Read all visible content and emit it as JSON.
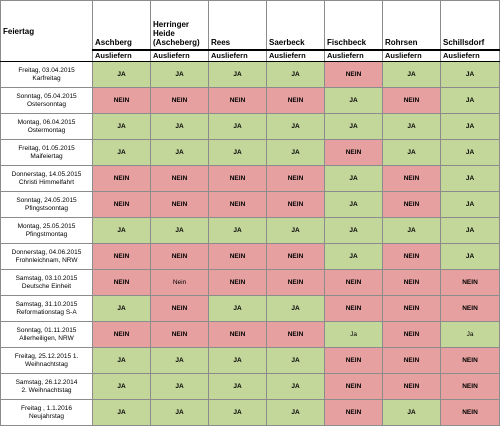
{
  "table": {
    "feiertag_header": "Feiertag",
    "sub_header": "Ausliefern",
    "locations": [
      "Aschberg",
      "Herringer Heide (Ascheberg)",
      "Rees",
      "Saerbeck",
      "Fischbeck",
      "Rohrsen",
      "Schillsdorf"
    ],
    "rows": [
      {
        "date": "Freitag, 03.04.2015",
        "name": "Karfreitag",
        "values": [
          "JA",
          "JA",
          "JA",
          "JA",
          "NEIN",
          "JA",
          "JA"
        ]
      },
      {
        "date": "Sonntag, 05.04.2015",
        "name": "Ostersonntag",
        "values": [
          "NEIN",
          "NEIN",
          "NEIN",
          "NEIN",
          "JA",
          "NEIN",
          "JA"
        ]
      },
      {
        "date": "Montag, 06.04.2015",
        "name": "Ostermontag",
        "values": [
          "JA",
          "JA",
          "JA",
          "JA",
          "JA",
          "JA",
          "JA"
        ]
      },
      {
        "date": "Freitag, 01.05.2015",
        "name": "Maifeiertag",
        "values": [
          "JA",
          "JA",
          "JA",
          "JA",
          "NEIN",
          "JA",
          "JA"
        ]
      },
      {
        "date": "Donnerstag, 14.05.2015",
        "name": "Christi Himmelfahrt",
        "values": [
          "NEIN",
          "NEIN",
          "NEIN",
          "NEIN",
          "JA",
          "NEIN",
          "JA"
        ]
      },
      {
        "date": "Sonntag, 24.05.2015",
        "name": "Pfingstsonntag",
        "values": [
          "NEIN",
          "NEIN",
          "NEIN",
          "NEIN",
          "JA",
          "NEIN",
          "JA"
        ]
      },
      {
        "date": "Montag, 25.05.2015",
        "name": "Pfingstmontag",
        "values": [
          "JA",
          "JA",
          "JA",
          "JA",
          "JA",
          "JA",
          "JA"
        ]
      },
      {
        "date": "Donnerstag, 04.06.2015",
        "name": "Frohnleichnam, NRW",
        "values": [
          "NEIN",
          "NEIN",
          "NEIN",
          "NEIN",
          "JA",
          "NEIN",
          "JA"
        ]
      },
      {
        "date": "Samstag, 03.10.2015",
        "name": "Deutsche Einheit",
        "values": [
          "NEIN",
          "Nein",
          "NEIN",
          "NEIN",
          "NEIN",
          "NEIN",
          "NEIN"
        ]
      },
      {
        "date": "Samstag, 31.10.2015",
        "name": "Reformationstag S-A",
        "values": [
          "JA",
          "NEIN",
          "JA",
          "JA",
          "NEIN",
          "NEIN",
          "NEIN"
        ]
      },
      {
        "date": "Sonntag, 01.11.2015",
        "name": "Allerheiligen, NRW",
        "values": [
          "NEIN",
          "NEIN",
          "NEIN",
          "NEIN",
          "Ja",
          "NEIN",
          "Ja"
        ]
      },
      {
        "date": "Freitag, 25.12.2015 1.",
        "name": "Weihnachtstag",
        "values": [
          "JA",
          "JA",
          "JA",
          "JA",
          "NEIN",
          "NEIN",
          "NEIN"
        ]
      },
      {
        "date": "Samstag, 26.12.2014",
        "name": "2. Weihnachtstag",
        "values": [
          "JA",
          "JA",
          "JA",
          "JA",
          "NEIN",
          "NEIN",
          "NEIN"
        ]
      },
      {
        "date": "Freitag , 1.1.2016",
        "name": "Neujahrstag",
        "values": [
          "JA",
          "JA",
          "JA",
          "JA",
          "NEIN",
          "JA",
          "NEIN"
        ]
      }
    ]
  },
  "colors": {
    "ja": "#c4d79b",
    "nein": "#e6a0a0"
  }
}
